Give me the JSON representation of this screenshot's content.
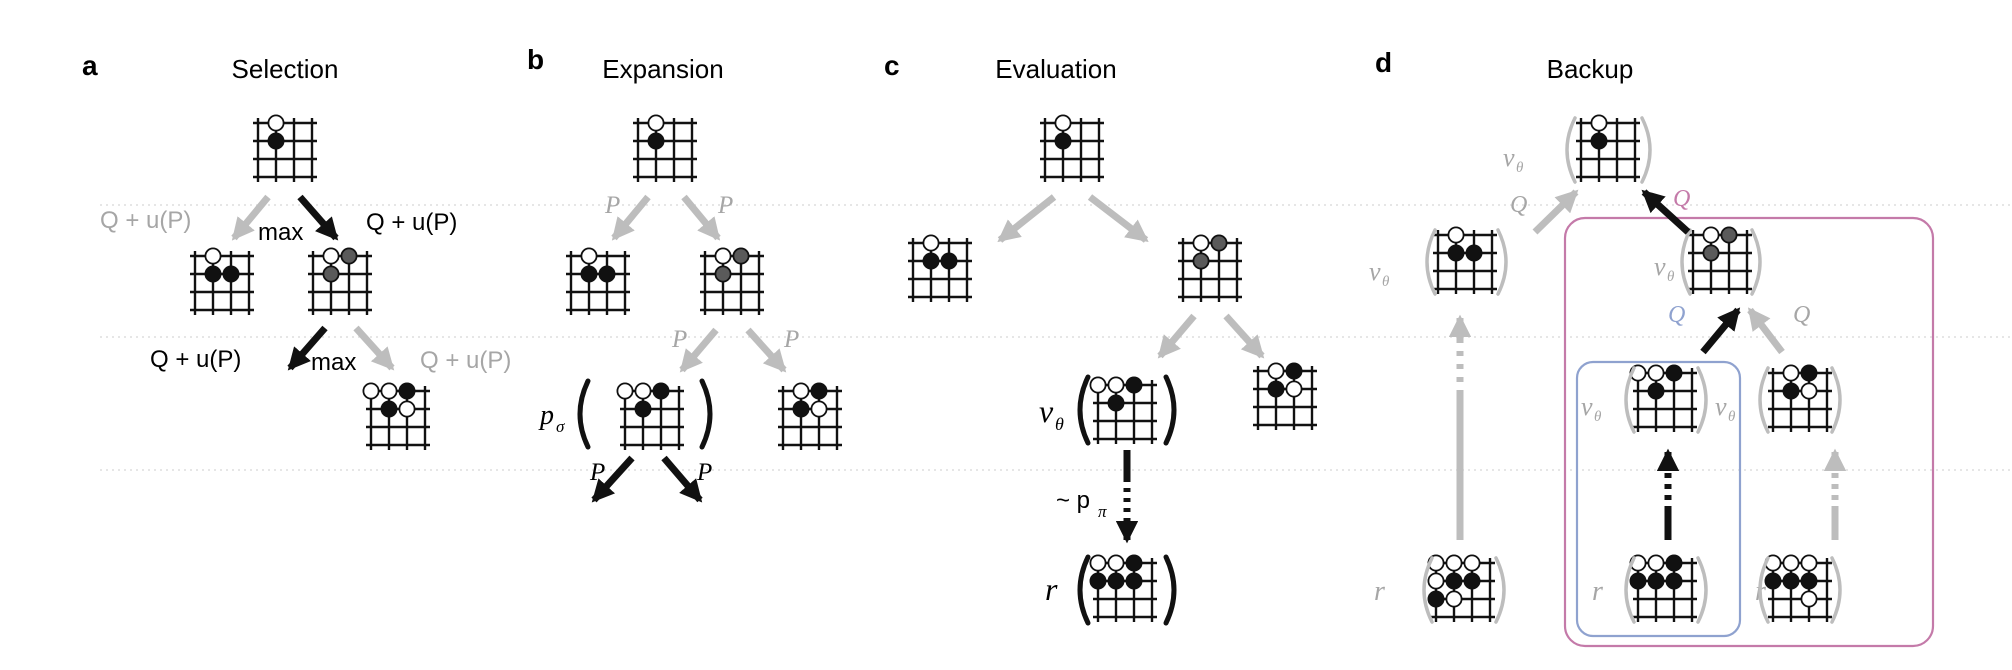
{
  "panels": [
    {
      "letter": "a",
      "title": "Selection"
    },
    {
      "letter": "b",
      "title": "Expansion"
    },
    {
      "letter": "c",
      "title": "Evaluation"
    },
    {
      "letter": "d",
      "title": "Backup"
    }
  ],
  "selection": {
    "left_edge_label": "Q + u(P)",
    "max_label_top": "max",
    "right_edge_label_top": "Q + u(P)",
    "left_edge_label_2": "Q + u(P)",
    "max_label_2": "max",
    "right_edge_label_2": "Q + u(P)"
  },
  "expansion": {
    "prior_label": "P",
    "policy_label": "p",
    "policy_subscript": "σ"
  },
  "evaluation": {
    "value_label": "v",
    "value_subscript": "θ",
    "rollout_prefix": "~ p",
    "rollout_subscript": "π",
    "reward_label": "r"
  },
  "backup": {
    "q_label": "Q",
    "value_label": "v",
    "value_subscript": "θ",
    "reward_label": "r"
  },
  "colors": {
    "black": "#111111",
    "gray": "#bdbdbd",
    "text_gray": "#a6a6a6",
    "pink": "#c47aa9",
    "blue": "#8fa2cf",
    "mid_stone": "#5a5a5a"
  }
}
